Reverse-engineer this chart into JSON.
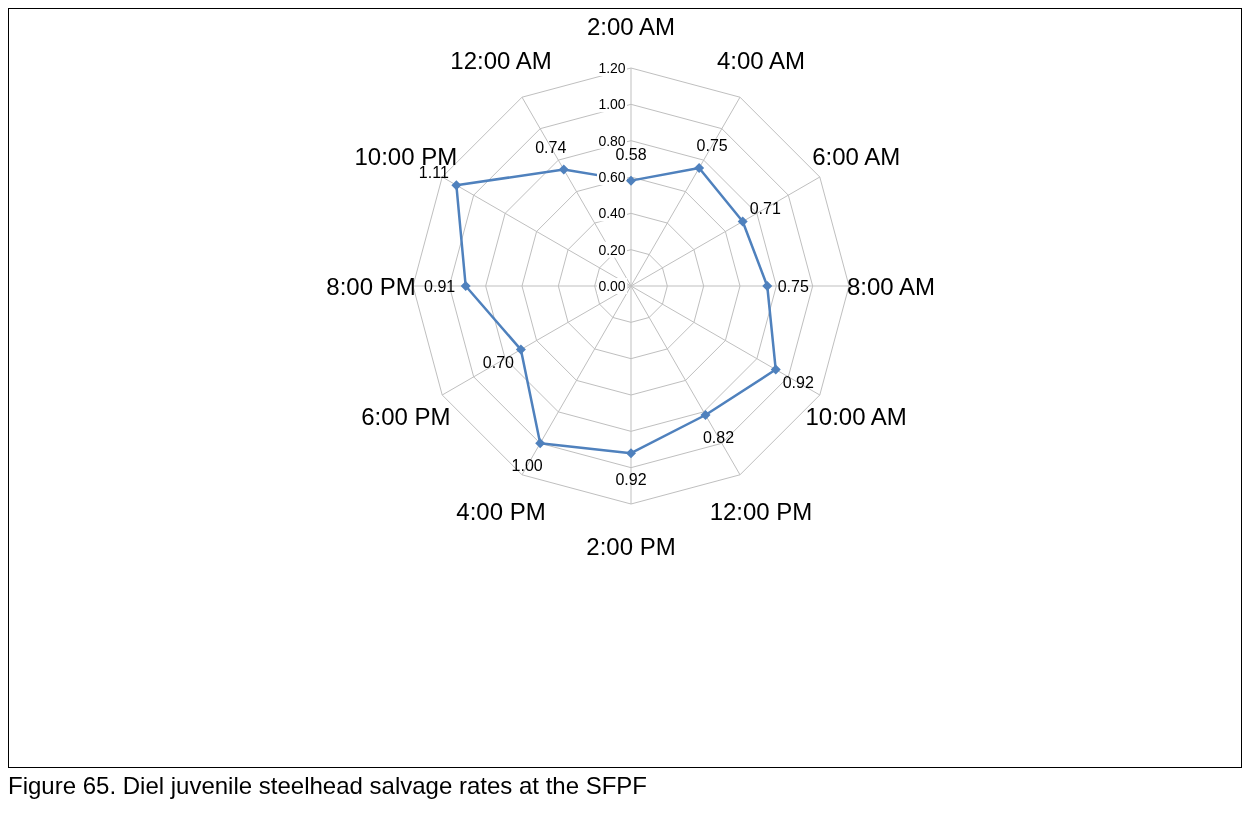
{
  "chart_data": {
    "type": "radar",
    "categories": [
      "2:00 AM",
      "4:00 AM",
      "6:00 AM",
      "8:00 AM",
      "10:00 AM",
      "12:00 PM",
      "2:00 PM",
      "4:00 PM",
      "6:00 PM",
      "8:00 PM",
      "10:00 PM",
      "12:00 AM"
    ],
    "series": [
      {
        "color": "#4f81bd",
        "values": [
          0.58,
          0.75,
          0.71,
          0.75,
          0.92,
          0.82,
          0.92,
          1.0,
          0.7,
          0.91,
          1.11,
          0.74
        ],
        "value_labels": [
          "0.58",
          "0.75",
          "0.71",
          "0.75",
          "0.92",
          "0.82",
          "0.92",
          "1.00",
          "0.70",
          "0.91",
          "1.11",
          "0.74"
        ]
      }
    ],
    "ylim": [
      0,
      1.2
    ],
    "yticks": [
      {
        "value": 0,
        "label": "0.00"
      },
      {
        "value": 0.2,
        "label": "0.20"
      },
      {
        "value": 0.4,
        "label": "0.40"
      },
      {
        "value": 0.6,
        "label": "0.60"
      },
      {
        "value": 0.8,
        "label": "0.80"
      },
      {
        "value": 1,
        "label": "1.00"
      },
      {
        "value": 1.2,
        "label": "1.20"
      }
    ],
    "grid": true,
    "legend": false,
    "marker": "diamond",
    "line_style": "solid",
    "annotations": [
      "Figure 65. Diel juvenile steelhead salvage rates at the SFPF"
    ]
  }
}
